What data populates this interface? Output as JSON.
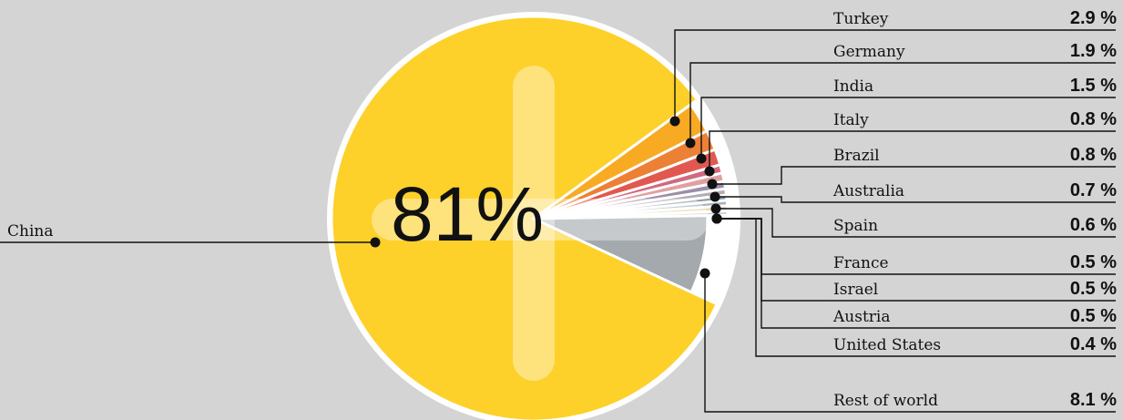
{
  "chart_data": {
    "type": "pie",
    "slices": [
      {
        "label": "China",
        "value": 81,
        "value_label": "81%",
        "color": "#fdd02a"
      },
      {
        "label": "Turkey",
        "value": 2.9,
        "value_label": "2.9 %",
        "color": "#f7aa22"
      },
      {
        "label": "Germany",
        "value": 1.9,
        "value_label": "1.9 %",
        "color": "#ec8034"
      },
      {
        "label": "India",
        "value": 1.5,
        "value_label": "1.5 %",
        "color": "#e0584f"
      },
      {
        "label": "Italy",
        "value": 0.8,
        "value_label": "0.8 %",
        "color": "#cf6a80"
      },
      {
        "label": "Brazil",
        "value": 0.8,
        "value_label": "0.8 %",
        "color": "#e0a09e"
      },
      {
        "label": "Australia",
        "value": 0.7,
        "value_label": "0.7 %",
        "color": "#9c8fa8"
      },
      {
        "label": "Spain",
        "value": 0.6,
        "value_label": "0.6 %",
        "color": "#b3acb4"
      },
      {
        "label": "France",
        "value": 0.5,
        "value_label": "0.5 %",
        "color": "#8e9aa4"
      },
      {
        "label": "Israel",
        "value": 0.5,
        "value_label": "0.5 %",
        "color": "#a7b2ba"
      },
      {
        "label": "Austria",
        "value": 0.5,
        "value_label": "0.5 %",
        "color": "#e5d7a0"
      },
      {
        "label": "United States",
        "value": 0.4,
        "value_label": "0.4 %",
        "color": "#c2c9cd"
      },
      {
        "label": "Rest of world",
        "value": 8.1,
        "value_label": "8.1 %",
        "color": "#a3a9ad"
      }
    ]
  }
}
